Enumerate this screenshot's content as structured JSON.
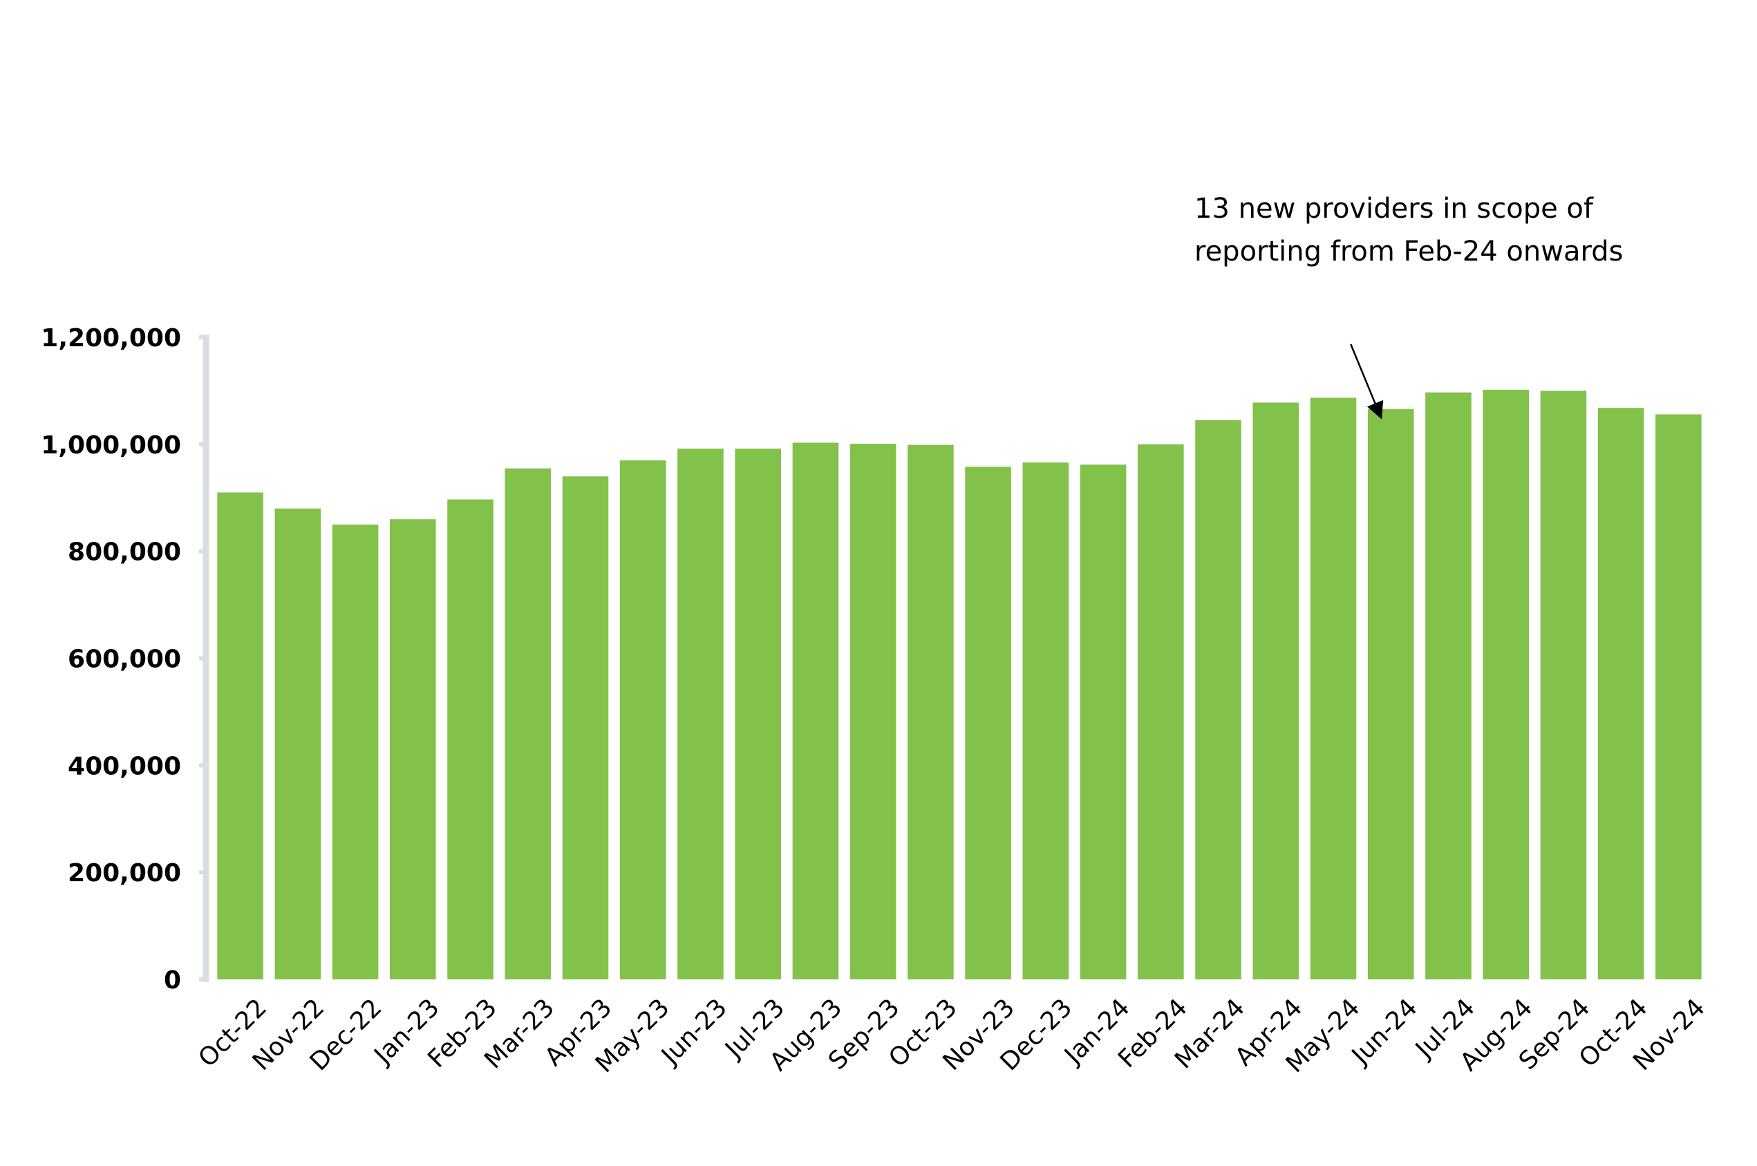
{
  "chart_data": {
    "type": "bar",
    "title": "",
    "xlabel": "",
    "ylabel": "",
    "ylim": [
      0,
      1200000
    ],
    "yticks": [
      0,
      200000,
      400000,
      600000,
      800000,
      1000000,
      1200000
    ],
    "ytick_labels": [
      "0",
      "200,000",
      "400,000",
      "600,000",
      "800,000",
      "1,000,000",
      "1,200,000"
    ],
    "grid": false,
    "legend": "none",
    "bar_color": "#82C24B",
    "axis_color": "#D9DEE2",
    "categories": [
      "Oct-22",
      "Nov-22",
      "Dec-22",
      "Jan-23",
      "Feb-23",
      "Mar-23",
      "Apr-23",
      "May-23",
      "Jun-23",
      "Jul-23",
      "Aug-23",
      "Sep-23",
      "Oct-23",
      "Nov-23",
      "Dec-23",
      "Jan-24",
      "Feb-24",
      "Mar-24",
      "Apr-24",
      "May-24",
      "Jun-24",
      "Jul-24",
      "Aug-24",
      "Sep-24",
      "Oct-24",
      "Nov-24"
    ],
    "values": [
      910000,
      880000,
      850000,
      860000,
      897000,
      955000,
      940000,
      970000,
      992000,
      992000,
      1003000,
      1001000,
      999000,
      958000,
      966000,
      962000,
      1000000,
      1045000,
      1078000,
      1087000,
      1066000,
      1097000,
      1102000,
      1100000,
      1068000,
      1056000
    ],
    "annotation": {
      "lines": [
        "13 new providers in scope of",
        "reporting from Feb-24 onwards"
      ],
      "target_category": "Jun-24"
    }
  }
}
